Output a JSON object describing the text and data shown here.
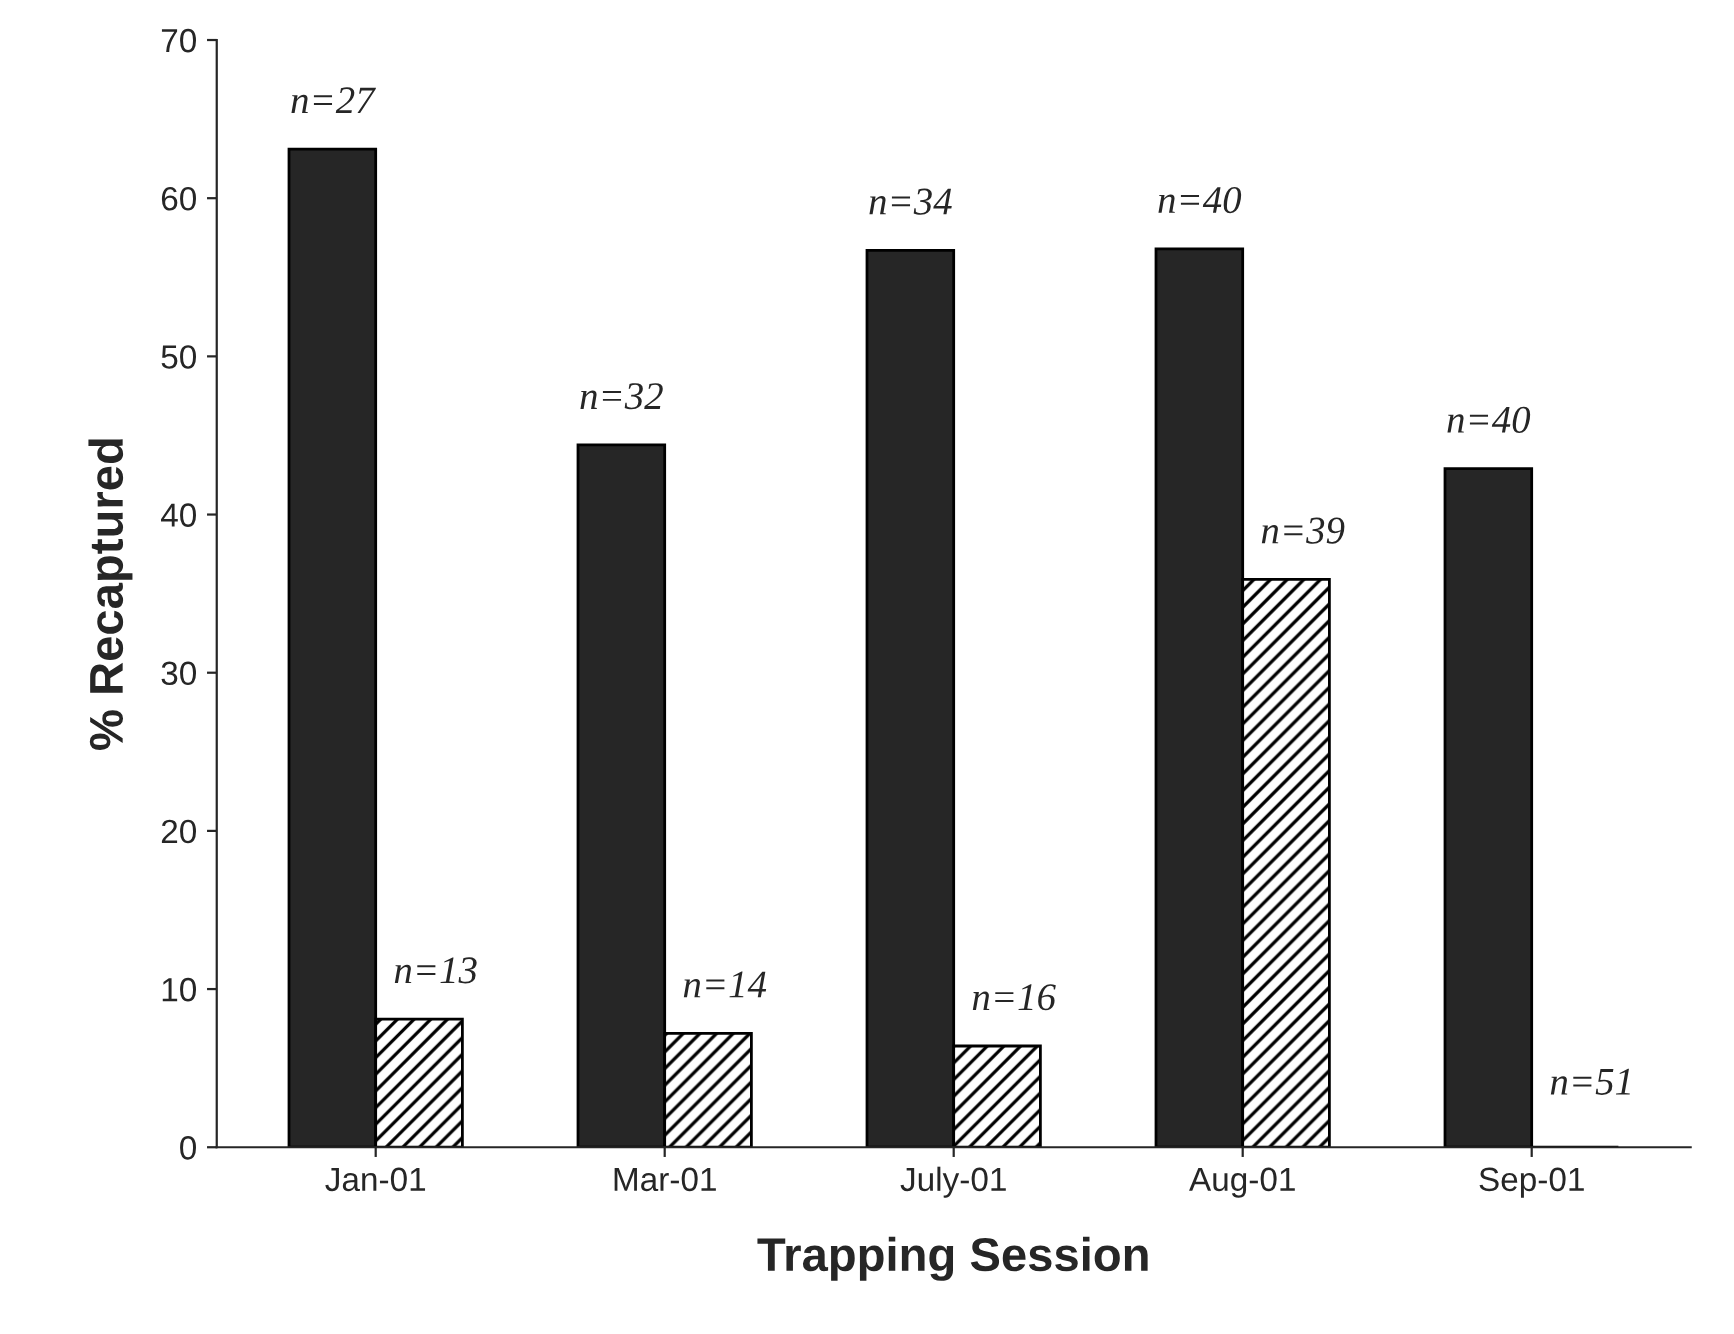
{
  "chart_data": {
    "type": "bar",
    "xlabel": "Trapping Session",
    "ylabel": "% Recaptured",
    "categories": [
      "Jan-01",
      "Mar-01",
      "July-01",
      "Aug-01",
      "Sep-01"
    ],
    "series": [
      {
        "color": "#262626",
        "values": [
          63.1,
          44.4,
          56.7,
          56.8,
          42.9
        ]
      },
      {
        "color": "#000000",
        "values": [
          8.1,
          7.2,
          6.4,
          35.9,
          0
        ]
      }
    ],
    "annotations": [
      {
        "text": "n=27",
        "x": "Jan-01",
        "y": 63.1
      },
      {
        "text": "n=32",
        "x": "Mar-01",
        "y": 44.4
      },
      {
        "text": "n=34",
        "x": "July-01",
        "y": 56.7
      },
      {
        "text": "n=40",
        "x": "Aug-01",
        "y": 56.8
      },
      {
        "text": "n=40",
        "x": "Sep-01",
        "y": 42.9
      },
      {
        "text": "n=13",
        "x": "Jan-01",
        "y": 8.1
      },
      {
        "text": "n=14",
        "x": "Mar-01",
        "y": 7.2
      },
      {
        "text": "n=16",
        "x": "July-01",
        "y": 6.4
      },
      {
        "text": "n=39",
        "x": "Aug-01",
        "y": 35.9
      },
      {
        "text": "n=51",
        "x": "Sep-01",
        "y": 0
      }
    ],
    "ylim": [
      0,
      70
    ],
    "yticks": [
      0,
      10,
      20,
      30,
      40,
      50,
      60,
      70
    ]
  }
}
